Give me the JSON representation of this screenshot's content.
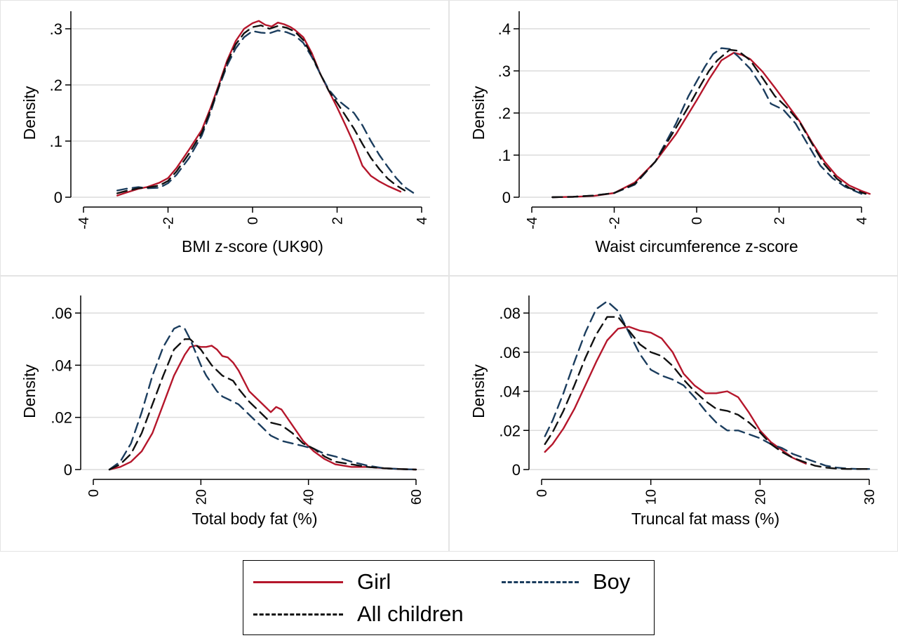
{
  "colors": {
    "girl": "#b5162b",
    "boy": "#1b3d5e",
    "all": "#111111",
    "grid": "#dcdcdc",
    "panel_border": "#e4e4e4"
  },
  "legend": {
    "girl": "Girl",
    "boy": "Boy",
    "all": "All children",
    "placement": "bottom"
  },
  "chart_data": [
    {
      "type": "line",
      "title": "",
      "xlabel": "BMI z-score (UK90)",
      "ylabel": "Density",
      "xlim": [
        -4,
        4
      ],
      "ylim": [
        0,
        0.3
      ],
      "xticks": [
        -4,
        -2,
        0,
        2,
        4
      ],
      "xtick_labels": [
        "-4",
        "-2",
        "0",
        "2",
        "4"
      ],
      "yticks": [
        0,
        0.1,
        0.2,
        0.3
      ],
      "ytick_labels": [
        "0",
        ".1",
        ".2",
        ".3"
      ],
      "grid": true,
      "series": [
        {
          "name": "Girl",
          "x": [
            -3.2,
            -3.0,
            -2.7,
            -2.5,
            -2.2,
            -2.0,
            -1.8,
            -1.5,
            -1.2,
            -1.0,
            -0.8,
            -0.6,
            -0.4,
            -0.2,
            0.0,
            0.15,
            0.3,
            0.45,
            0.6,
            0.75,
            0.9,
            1.0,
            1.2,
            1.4,
            1.6,
            1.8,
            2.0,
            2.2,
            2.4,
            2.6,
            2.8,
            3.0,
            3.2,
            3.5
          ],
          "y": [
            0.003,
            0.008,
            0.015,
            0.018,
            0.026,
            0.034,
            0.052,
            0.085,
            0.12,
            0.158,
            0.2,
            0.244,
            0.278,
            0.3,
            0.31,
            0.314,
            0.307,
            0.304,
            0.311,
            0.308,
            0.303,
            0.298,
            0.285,
            0.257,
            0.22,
            0.19,
            0.16,
            0.128,
            0.095,
            0.056,
            0.038,
            0.028,
            0.02,
            0.01
          ]
        },
        {
          "name": "Boy",
          "x": [
            -3.2,
            -3.0,
            -2.7,
            -2.5,
            -2.2,
            -2.0,
            -1.8,
            -1.5,
            -1.2,
            -1.0,
            -0.8,
            -0.6,
            -0.4,
            -0.2,
            0.0,
            0.2,
            0.4,
            0.6,
            0.8,
            1.0,
            1.2,
            1.4,
            1.6,
            1.8,
            2.0,
            2.2,
            2.4,
            2.6,
            2.8,
            3.0,
            3.2,
            3.4,
            3.6,
            3.8
          ],
          "y": [
            0.012,
            0.015,
            0.018,
            0.016,
            0.017,
            0.025,
            0.04,
            0.07,
            0.11,
            0.15,
            0.195,
            0.235,
            0.265,
            0.285,
            0.296,
            0.293,
            0.292,
            0.297,
            0.294,
            0.288,
            0.275,
            0.25,
            0.22,
            0.192,
            0.174,
            0.162,
            0.15,
            0.128,
            0.1,
            0.075,
            0.054,
            0.034,
            0.018,
            0.008
          ]
        },
        {
          "name": "All children",
          "x": [
            -3.2,
            -3.0,
            -2.7,
            -2.5,
            -2.2,
            -2.0,
            -1.8,
            -1.5,
            -1.2,
            -1.0,
            -0.8,
            -0.6,
            -0.4,
            -0.2,
            0.0,
            0.2,
            0.4,
            0.6,
            0.8,
            1.0,
            1.2,
            1.4,
            1.6,
            1.8,
            2.0,
            2.2,
            2.4,
            2.6,
            2.8,
            3.0,
            3.2,
            3.4,
            3.6
          ],
          "y": [
            0.007,
            0.011,
            0.016,
            0.017,
            0.021,
            0.029,
            0.046,
            0.078,
            0.115,
            0.154,
            0.197,
            0.24,
            0.272,
            0.292,
            0.303,
            0.306,
            0.3,
            0.305,
            0.302,
            0.295,
            0.28,
            0.253,
            0.22,
            0.19,
            0.168,
            0.145,
            0.122,
            0.095,
            0.07,
            0.05,
            0.033,
            0.021,
            0.012
          ]
        }
      ]
    },
    {
      "type": "line",
      "title": "",
      "xlabel": "Waist circumference z-score",
      "ylabel": "Density",
      "xlim": [
        -4,
        4
      ],
      "ylim": [
        0,
        0.4
      ],
      "xticks": [
        -4,
        -2,
        0,
        2,
        4
      ],
      "xtick_labels": [
        "-4",
        "-2",
        "0",
        "2",
        "4"
      ],
      "yticks": [
        0,
        0.1,
        0.2,
        0.3,
        0.4
      ],
      "ytick_labels": [
        "0",
        ".1",
        ".2",
        ".3",
        ".4"
      ],
      "grid": true,
      "series": [
        {
          "name": "Girl",
          "x": [
            -3.5,
            -3.0,
            -2.5,
            -2.0,
            -1.5,
            -1.0,
            -0.5,
            0.0,
            0.3,
            0.6,
            0.9,
            1.1,
            1.3,
            1.6,
            1.9,
            2.2,
            2.5,
            2.8,
            3.1,
            3.4,
            3.7,
            4.0,
            4.2
          ],
          "y": [
            0.0,
            0.001,
            0.003,
            0.01,
            0.035,
            0.085,
            0.15,
            0.23,
            0.28,
            0.325,
            0.343,
            0.338,
            0.328,
            0.298,
            0.26,
            0.22,
            0.18,
            0.13,
            0.085,
            0.05,
            0.028,
            0.015,
            0.008
          ]
        },
        {
          "name": "Boy",
          "x": [
            -3.5,
            -3.0,
            -2.5,
            -2.0,
            -1.5,
            -1.0,
            -0.5,
            -0.2,
            0.0,
            0.2,
            0.4,
            0.6,
            0.8,
            1.0,
            1.3,
            1.6,
            1.8,
            2.1,
            2.4,
            2.7,
            3.0,
            3.3,
            3.6,
            4.0
          ],
          "y": [
            0.0,
            0.001,
            0.004,
            0.01,
            0.03,
            0.085,
            0.175,
            0.24,
            0.275,
            0.31,
            0.34,
            0.354,
            0.352,
            0.335,
            0.305,
            0.26,
            0.222,
            0.208,
            0.175,
            0.125,
            0.075,
            0.045,
            0.025,
            0.008
          ]
        },
        {
          "name": "All children",
          "x": [
            -3.5,
            -3.0,
            -2.5,
            -2.0,
            -1.5,
            -1.0,
            -0.5,
            -0.2,
            0.0,
            0.3,
            0.5,
            0.8,
            1.0,
            1.3,
            1.6,
            1.9,
            2.2,
            2.5,
            2.8,
            3.1,
            3.4,
            3.7,
            4.1
          ],
          "y": [
            0.0,
            0.001,
            0.004,
            0.01,
            0.032,
            0.085,
            0.165,
            0.215,
            0.25,
            0.3,
            0.325,
            0.35,
            0.348,
            0.325,
            0.283,
            0.24,
            0.212,
            0.178,
            0.127,
            0.078,
            0.044,
            0.022,
            0.008
          ]
        }
      ]
    },
    {
      "type": "line",
      "title": "",
      "xlabel": "Total body fat (%)",
      "ylabel": "Density",
      "xlim": [
        0,
        60
      ],
      "ylim": [
        0,
        0.06
      ],
      "xticks": [
        0,
        20,
        40,
        60
      ],
      "xtick_labels": [
        "0",
        "20",
        "40",
        "60"
      ],
      "yticks": [
        0,
        0.02,
        0.04,
        0.06
      ],
      "ytick_labels": [
        "0",
        ".02",
        ".04",
        ".06"
      ],
      "grid": true,
      "series": [
        {
          "name": "Girl",
          "x": [
            3,
            5,
            7,
            9,
            11,
            13,
            15,
            17,
            18,
            19,
            20,
            21,
            22,
            23,
            24,
            25,
            26,
            27,
            29,
            31,
            33,
            34,
            35,
            37,
            39,
            41,
            43,
            45,
            48,
            51,
            54,
            57,
            60
          ],
          "y": [
            0.0,
            0.001,
            0.003,
            0.007,
            0.014,
            0.025,
            0.036,
            0.044,
            0.047,
            0.0475,
            0.047,
            0.047,
            0.0475,
            0.046,
            0.0435,
            0.043,
            0.041,
            0.038,
            0.03,
            0.026,
            0.022,
            0.024,
            0.023,
            0.017,
            0.011,
            0.007,
            0.004,
            0.002,
            0.001,
            0.001,
            0.0005,
            0.0002,
            0.0
          ]
        },
        {
          "name": "Boy",
          "x": [
            3,
            5,
            7,
            9,
            11,
            13,
            15,
            16,
            17,
            18,
            19,
            20,
            21,
            22,
            23,
            24,
            25,
            27,
            29,
            31,
            33,
            35,
            37,
            39,
            41,
            43,
            45,
            48,
            51,
            54,
            57,
            60
          ],
          "y": [
            0.0,
            0.003,
            0.01,
            0.022,
            0.036,
            0.047,
            0.054,
            0.055,
            0.054,
            0.05,
            0.045,
            0.04,
            0.036,
            0.033,
            0.03,
            0.028,
            0.027,
            0.025,
            0.021,
            0.017,
            0.013,
            0.011,
            0.01,
            0.009,
            0.008,
            0.006,
            0.005,
            0.003,
            0.0015,
            0.0005,
            0.0002,
            0.0
          ]
        },
        {
          "name": "All children",
          "x": [
            3,
            5,
            7,
            9,
            11,
            13,
            15,
            17,
            18,
            19,
            20,
            21,
            22,
            23,
            24,
            25,
            26,
            27,
            29,
            31,
            33,
            35,
            37,
            39,
            41,
            43,
            45,
            48,
            51,
            54,
            57,
            60
          ],
          "y": [
            0.0,
            0.002,
            0.006,
            0.014,
            0.025,
            0.036,
            0.046,
            0.05,
            0.05,
            0.048,
            0.046,
            0.043,
            0.04,
            0.038,
            0.036,
            0.035,
            0.034,
            0.031,
            0.026,
            0.022,
            0.018,
            0.017,
            0.014,
            0.01,
            0.008,
            0.005,
            0.003,
            0.002,
            0.001,
            0.0005,
            0.0002,
            0.0
          ]
        }
      ]
    },
    {
      "type": "line",
      "title": "",
      "xlabel": "Truncal fat mass (%)",
      "ylabel": "Density",
      "xlim": [
        0,
        30
      ],
      "ylim": [
        0,
        0.08
      ],
      "xticks": [
        0,
        10,
        20,
        30
      ],
      "xtick_labels": [
        "0",
        "10",
        "20",
        "30"
      ],
      "yticks": [
        0,
        0.02,
        0.04,
        0.06,
        0.08
      ],
      "ytick_labels": [
        "0",
        ".02",
        ".04",
        ".06",
        ".08"
      ],
      "grid": true,
      "series": [
        {
          "name": "Girl",
          "x": [
            0.3,
            1,
            2,
            3,
            4,
            5,
            6,
            7,
            8,
            9,
            10,
            11,
            12,
            13,
            14,
            15,
            16,
            17,
            18,
            19,
            20,
            21,
            22,
            23,
            24.2
          ],
          "y": [
            0.009,
            0.013,
            0.021,
            0.031,
            0.043,
            0.055,
            0.066,
            0.072,
            0.073,
            0.071,
            0.07,
            0.067,
            0.06,
            0.049,
            0.043,
            0.039,
            0.039,
            0.04,
            0.037,
            0.029,
            0.02,
            0.014,
            0.01,
            0.006,
            0.003
          ]
        },
        {
          "name": "Boy",
          "x": [
            0.3,
            1,
            2,
            3,
            4,
            5,
            6,
            7,
            8,
            9,
            10,
            11,
            12,
            13,
            14,
            15,
            16,
            17,
            18,
            19,
            20,
            21,
            22,
            23,
            24,
            25,
            26,
            27,
            28,
            29,
            30
          ],
          "y": [
            0.017,
            0.025,
            0.039,
            0.055,
            0.07,
            0.082,
            0.086,
            0.081,
            0.07,
            0.059,
            0.051,
            0.048,
            0.046,
            0.043,
            0.037,
            0.03,
            0.024,
            0.02,
            0.02,
            0.018,
            0.016,
            0.013,
            0.011,
            0.008,
            0.006,
            0.004,
            0.002,
            0.001,
            0.0005,
            0.0003,
            0.0003
          ]
        },
        {
          "name": "All children",
          "x": [
            0.3,
            1,
            2,
            3,
            4,
            5,
            6,
            7,
            8,
            9,
            10,
            11,
            12,
            13,
            14,
            15,
            16,
            17,
            18,
            19,
            20,
            21,
            22,
            23,
            24,
            25,
            26,
            27,
            28,
            29,
            30
          ],
          "y": [
            0.013,
            0.019,
            0.03,
            0.043,
            0.057,
            0.069,
            0.078,
            0.078,
            0.071,
            0.064,
            0.06,
            0.058,
            0.053,
            0.046,
            0.04,
            0.035,
            0.031,
            0.03,
            0.028,
            0.024,
            0.019,
            0.013,
            0.009,
            0.006,
            0.004,
            0.002,
            0.001,
            0.0005,
            0.0003,
            0.0003,
            0.0003
          ]
        }
      ]
    }
  ]
}
